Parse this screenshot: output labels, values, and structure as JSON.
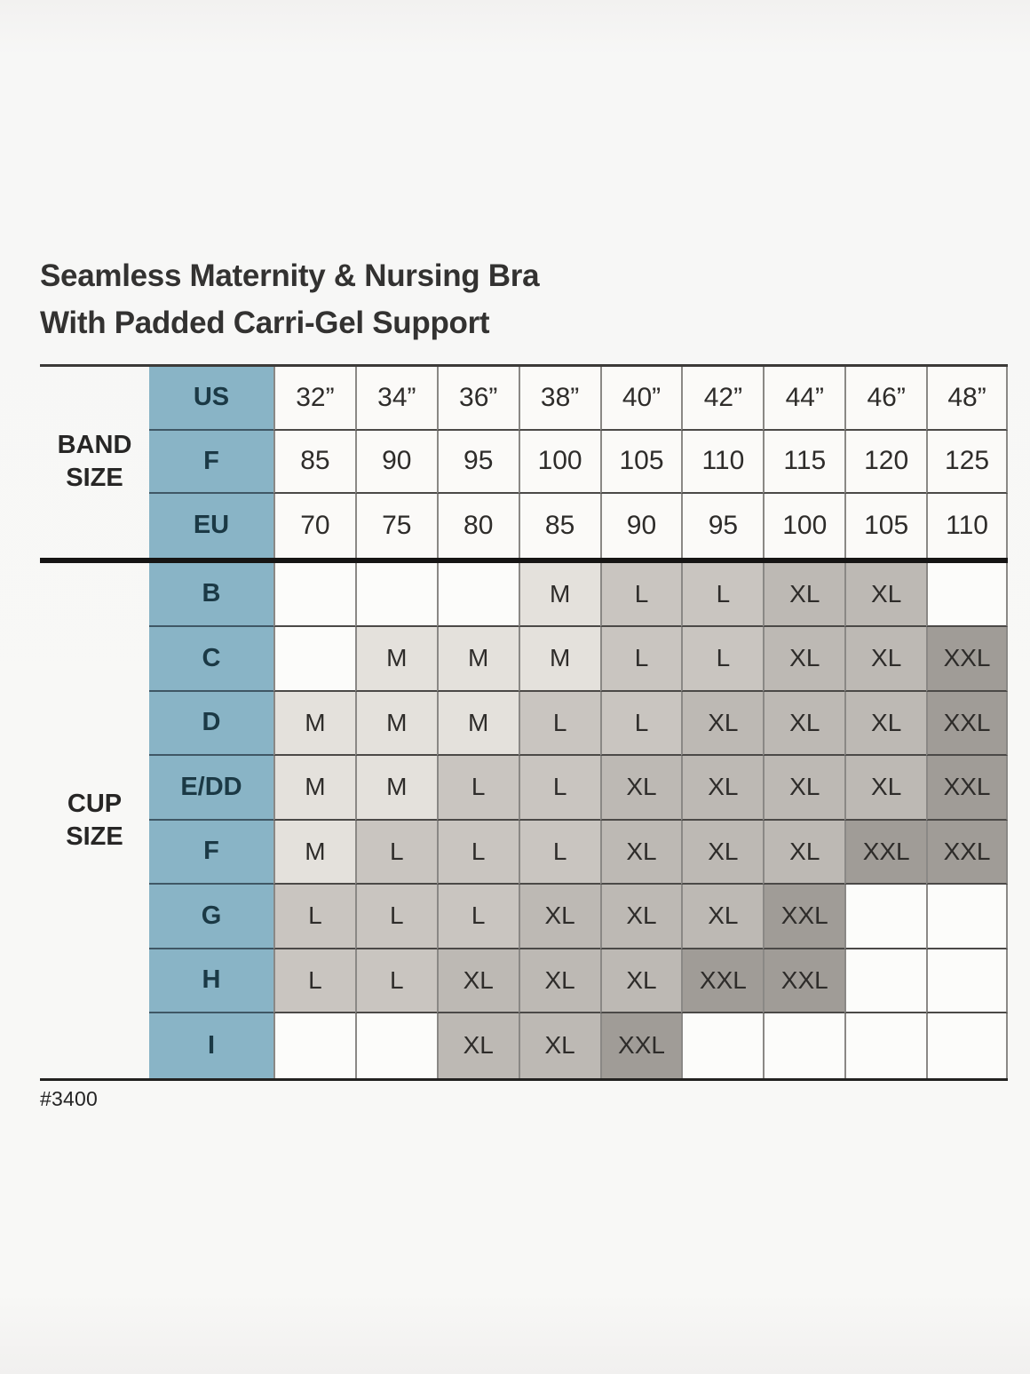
{
  "title": {
    "line1": "Seamless Maternity & Nursing Bra",
    "line2": "With Padded Carri-Gel Support"
  },
  "footer": {
    "style_number": "#3400"
  },
  "colors": {
    "header_blue": "#89b4c6",
    "header_text": "#1b3945",
    "band_cell_bg": "#fbfaf8",
    "cell_shades": {
      "M": "#e4e1dc",
      "L": "#c9c5c0",
      "XL": "#bdb9b4",
      "XXL": "#a09c97",
      "blank": "#fcfcfa"
    }
  },
  "chart_data": {
    "type": "table",
    "title": "Seamless Maternity & Nursing Bra With Padded Carri-Gel Support",
    "band": {
      "label": "BAND SIZE",
      "rows": [
        {
          "system": "US",
          "values": [
            "32”",
            "34”",
            "36”",
            "38”",
            "40”",
            "42”",
            "44”",
            "46”",
            "48”"
          ]
        },
        {
          "system": "F",
          "values": [
            "85",
            "90",
            "95",
            "100",
            "105",
            "110",
            "115",
            "120",
            "125"
          ]
        },
        {
          "system": "EU",
          "values": [
            "70",
            "75",
            "80",
            "85",
            "90",
            "95",
            "100",
            "105",
            "110"
          ]
        }
      ]
    },
    "cup": {
      "label": "CUP SIZE",
      "rows": [
        {
          "cup": "B",
          "values": [
            "",
            "",
            "",
            "M",
            "L",
            "L",
            "XL",
            "XL",
            ""
          ]
        },
        {
          "cup": "C",
          "values": [
            "",
            "M",
            "M",
            "M",
            "L",
            "L",
            "XL",
            "XL",
            "XXL"
          ]
        },
        {
          "cup": "D",
          "values": [
            "M",
            "M",
            "M",
            "L",
            "L",
            "XL",
            "XL",
            "XL",
            "XXL"
          ]
        },
        {
          "cup": "E/DD",
          "values": [
            "M",
            "M",
            "L",
            "L",
            "XL",
            "XL",
            "XL",
            "XL",
            "XXL"
          ]
        },
        {
          "cup": "F",
          "values": [
            "M",
            "L",
            "L",
            "L",
            "XL",
            "XL",
            "XL",
            "XXL",
            "XXL"
          ]
        },
        {
          "cup": "G",
          "values": [
            "L",
            "L",
            "L",
            "XL",
            "XL",
            "XL",
            "XXL",
            "",
            ""
          ]
        },
        {
          "cup": "H",
          "values": [
            "L",
            "L",
            "XL",
            "XL",
            "XL",
            "XXL",
            "XXL",
            "",
            ""
          ]
        },
        {
          "cup": "I",
          "values": [
            "",
            "",
            "XL",
            "XL",
            "XXL",
            "",
            "",
            "",
            ""
          ]
        }
      ]
    }
  }
}
